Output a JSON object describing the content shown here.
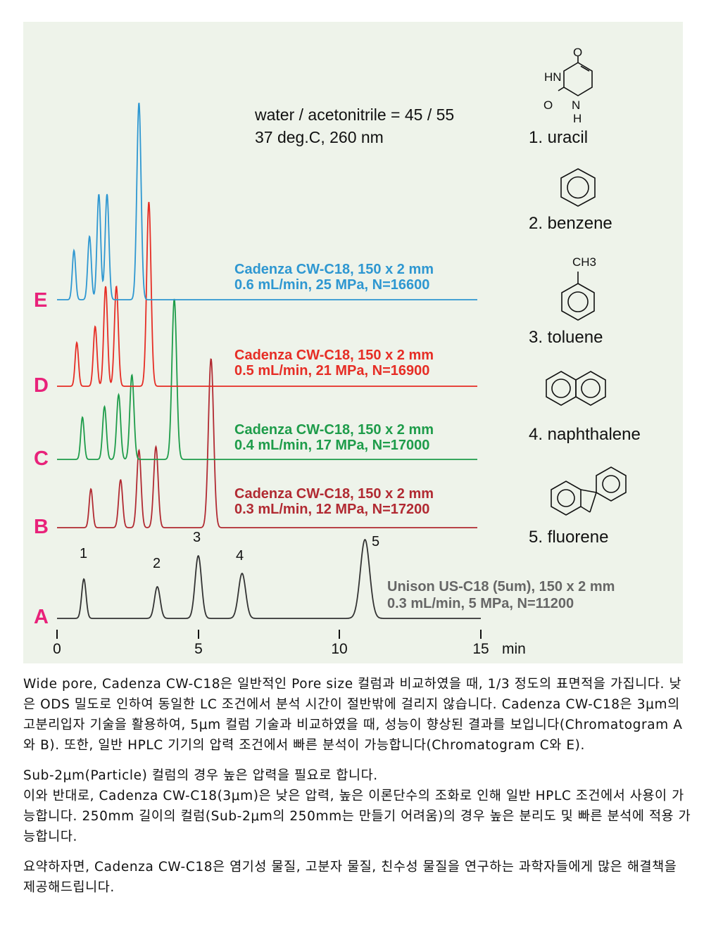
{
  "conditions": {
    "line1": "water / acetonitrile = 45 / 55",
    "line2": "37 deg.C, 260 nm"
  },
  "compounds": [
    {
      "name": "1. uracil",
      "icon": "uracil-structure-icon",
      "atoms": [
        "O",
        "HN",
        "O",
        "N",
        "H"
      ]
    },
    {
      "name": "2. benzene",
      "icon": "benzene-structure-icon"
    },
    {
      "name": "3. toluene",
      "icon": "toluene-structure-icon",
      "group": "CH3"
    },
    {
      "name": "4. naphthalene",
      "icon": "naphthalene-structure-icon"
    },
    {
      "name": "5. fluorene",
      "icon": "fluorene-structure-icon"
    }
  ],
  "chart_data": {
    "type": "line",
    "xlabel": "min",
    "x_ticks": [
      "0",
      "5",
      "10",
      "15"
    ],
    "xlim": [
      0,
      15
    ],
    "peak_labels": [
      "1",
      "2",
      "3",
      "4",
      "5"
    ],
    "series": [
      {
        "trace": "A",
        "column": "Unison US-C18 (5um), 150 x 2 mm",
        "conditions": "0.3 mL/min, 5 MPa, N=11200",
        "color": "#333333",
        "peaks": [
          {
            "t": 0.95,
            "h": 56
          },
          {
            "t": 3.55,
            "h": 45
          },
          {
            "t": 5.0,
            "h": 89
          },
          {
            "t": 6.55,
            "h": 64
          },
          {
            "t": 10.9,
            "h": 112
          }
        ]
      },
      {
        "trace": "B",
        "column": "Cadenza CW-C18, 150 x 2 mm",
        "conditions": "0.3 mL/min, 12 MPa, N=17200",
        "color": "#b12a32",
        "peaks": [
          {
            "t": 1.2,
            "h": 55
          },
          {
            "t": 2.25,
            "h": 68
          },
          {
            "t": 2.9,
            "h": 110
          },
          {
            "t": 3.5,
            "h": 115
          },
          {
            "t": 5.45,
            "h": 240
          }
        ]
      },
      {
        "trace": "C",
        "column": "Cadenza CW-C18, 150 x 2 mm",
        "conditions": "0.4 mL/min, 17 MPa, N=17000",
        "color": "#1e9c4a",
        "peaks": [
          {
            "t": 0.9,
            "h": 60
          },
          {
            "t": 1.68,
            "h": 75
          },
          {
            "t": 2.18,
            "h": 92
          },
          {
            "t": 2.65,
            "h": 120
          },
          {
            "t": 4.15,
            "h": 228
          }
        ]
      },
      {
        "trace": "D",
        "column": "Cadenza CW-C18, 150 x 2 mm",
        "conditions": "0.5 mL/min, 21 MPa, N=16900",
        "color": "#e62d25",
        "peaks": [
          {
            "t": 0.7,
            "h": 62
          },
          {
            "t": 1.35,
            "h": 85
          },
          {
            "t": 1.72,
            "h": 142
          },
          {
            "t": 2.1,
            "h": 142
          },
          {
            "t": 3.25,
            "h": 262
          }
        ]
      },
      {
        "trace": "E",
        "column": "Cadenza CW-C18, 150 x 2 mm",
        "conditions": "0.6 mL/min, 25 MPa, N=16600",
        "color": "#2e97d1",
        "peaks": [
          {
            "t": 0.6,
            "h": 70
          },
          {
            "t": 1.15,
            "h": 90
          },
          {
            "t": 1.48,
            "h": 150
          },
          {
            "t": 1.77,
            "h": 150
          },
          {
            "t": 2.9,
            "h": 280
          }
        ]
      }
    ]
  },
  "description": {
    "p1": "Wide pore, Cadenza CW-C18은 일반적인 Pore size 컬럼과 비교하였을 때, 1/3 정도의 표면적을 가집니다. 낮은 ODS 밀도로 인하여 동일한 LC 조건에서 분석 시간이 절반밖에 걸리지 않습니다. Cadenza CW-C18은 3μm의 고분리입자 기술을 활용하여, 5μm 컬럼 기술과 비교하였을 때, 성능이 향상된 결과를 보입니다(Chromatogram A와 B). 또한, 일반 HPLC 기기의 압력 조건에서 빠른 분석이 가능합니다(Chromatogram C와 E).",
    "p2a": "Sub-2μm(Particle) 컬럼의 경우 높은 압력을 필요로 합니다.",
    "p2b": "이와 반대로, Cadenza CW-C18(3μm)은 낮은 압력, 높은 이론단수의 조화로 인해 일반 HPLC 조건에서 사용이 가능합니다. 250mm 길이의 컬럼(Sub-2μm의 250mm는 만들기 어려움)의 경우 높은 분리도 및 빠른 분석에 적용 가능합니다.",
    "p3": "요약하자면, Cadenza CW-C18은 염기성 물질, 고분자 물질, 친수성 물질을 연구하는 과학자들에게 많은 해결책을 제공해드립니다."
  }
}
